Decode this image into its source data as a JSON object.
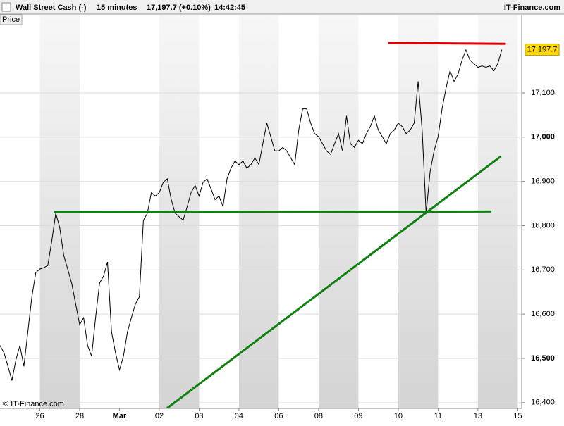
{
  "header": {
    "instrument": "Wall Street Cash (-)",
    "interval": "15 minutes",
    "quote": "17,197.7 (+0.10%)",
    "time": "14:42:45",
    "brand": "IT-Finance.com"
  },
  "panel_label": "Price",
  "footer": "© IT-Finance.com",
  "chart_data": {
    "type": "line",
    "xlim": [
      0,
      13.1
    ],
    "xticks": [
      {
        "value": 1,
        "label": "26"
      },
      {
        "value": 2,
        "label": "28"
      },
      {
        "value": 3,
        "label": "Mar"
      },
      {
        "value": 4,
        "label": "02"
      },
      {
        "value": 5,
        "label": "03"
      },
      {
        "value": 6,
        "label": "04"
      },
      {
        "value": 7,
        "label": "06"
      },
      {
        "value": 8,
        "label": "08"
      },
      {
        "value": 9,
        "label": "09"
      },
      {
        "value": 10,
        "label": "10"
      },
      {
        "value": 11,
        "label": "11"
      },
      {
        "value": 12,
        "label": "13"
      },
      {
        "value": 13,
        "label": "15"
      }
    ],
    "ylim": [
      16387,
      17275
    ],
    "yticks": [
      {
        "value": 16400,
        "label": "16,400"
      },
      {
        "value": 16500,
        "label": "16,500"
      },
      {
        "value": 16600,
        "label": "16,600"
      },
      {
        "value": 16700,
        "label": "16,700"
      },
      {
        "value": 16800,
        "label": "16,800"
      },
      {
        "value": 16900,
        "label": "16,900"
      },
      {
        "value": 17000,
        "label": "17,000"
      },
      {
        "value": 17100,
        "label": "17,100"
      }
    ],
    "grid": true,
    "series": [
      {
        "color": "#000000",
        "x": [
          0,
          0.1,
          0.2,
          0.3,
          0.4,
          0.5,
          0.6,
          0.7,
          0.8,
          0.9,
          1,
          1.1,
          1.2,
          1.3,
          1.4,
          1.5,
          1.6,
          1.7,
          1.8,
          1.9,
          2,
          2.1,
          2.2,
          2.3,
          2.4,
          2.5,
          2.6,
          2.7,
          2.8,
          2.9,
          3,
          3.1,
          3.2,
          3.3,
          3.4,
          3.5,
          3.6,
          3.7,
          3.8,
          3.9,
          4,
          4.1,
          4.2,
          4.3,
          4.4,
          4.5,
          4.6,
          4.7,
          4.8,
          4.9,
          5,
          5.1,
          5.2,
          5.3,
          5.4,
          5.5,
          5.6,
          5.7,
          5.8,
          5.9,
          6,
          6.1,
          6.2,
          6.3,
          6.4,
          6.5,
          6.6,
          6.7,
          6.8,
          6.9,
          7,
          7.1,
          7.2,
          7.3,
          7.4,
          7.5,
          7.6,
          7.7,
          7.8,
          7.9,
          8,
          8.1,
          8.2,
          8.3,
          8.4,
          8.5,
          8.6,
          8.7,
          8.8,
          8.9,
          9,
          9.1,
          9.2,
          9.3,
          9.4,
          9.5,
          9.6,
          9.7,
          9.8,
          9.9,
          10,
          10.1,
          10.2,
          10.3,
          10.4,
          10.5,
          10.6,
          10.7,
          10.8,
          10.9,
          11,
          11.1,
          11.2,
          11.3,
          11.4,
          11.5,
          11.6,
          11.7,
          11.8,
          11.9,
          12,
          12.1,
          12.2,
          12.3,
          12.4,
          12.5,
          12.6
        ],
        "values": [
          16529,
          16513,
          16482,
          16450,
          16497,
          16529,
          16482,
          16560,
          16639,
          16694,
          16702,
          16705,
          16710,
          16765,
          16828,
          16796,
          16733,
          16702,
          16670,
          16623,
          16576,
          16592,
          16529,
          16505,
          16592,
          16670,
          16686,
          16718,
          16560,
          16513,
          16474,
          16505,
          16560,
          16592,
          16623,
          16639,
          16812,
          16828,
          16875,
          16867,
          16875,
          16898,
          16906,
          16859,
          16828,
          16820,
          16812,
          16843,
          16875,
          16891,
          16867,
          16898,
          16906,
          16883,
          16859,
          16867,
          16843,
          16906,
          16930,
          16946,
          16938,
          16946,
          16930,
          16938,
          16953,
          16938,
          16985,
          17032,
          17001,
          16969,
          16969,
          16977,
          16969,
          16953,
          16938,
          17016,
          17064,
          17064,
          17032,
          17008,
          17001,
          16985,
          16969,
          16961,
          16985,
          17008,
          16969,
          17048,
          16985,
          16977,
          16993,
          16985,
          17008,
          17024,
          17048,
          17016,
          17001,
          16985,
          17008,
          17016,
          17032,
          17024,
          17008,
          17016,
          17032,
          17126,
          17016,
          16828,
          16922,
          16969,
          17001,
          17064,
          17111,
          17150,
          17126,
          17142,
          17174,
          17197,
          17174,
          17166,
          17158,
          17161,
          17158,
          17161,
          17150,
          17166,
          17197.7
        ]
      }
    ],
    "trendlines": [
      {
        "color": "#e00000",
        "x": [
          9.75,
          12.7
        ],
        "values": [
          17213,
          17211
        ]
      },
      {
        "color": "#108010",
        "x": [
          1.35,
          12.34
        ],
        "values": [
          16831,
          16832
        ]
      },
      {
        "color": "#108010",
        "x": [
          4.19,
          12.58
        ],
        "values": [
          16387,
          16957
        ]
      }
    ],
    "last_price": 17197.7,
    "last_price_label": "17,197.7",
    "last_price_color": "#ffd800"
  }
}
